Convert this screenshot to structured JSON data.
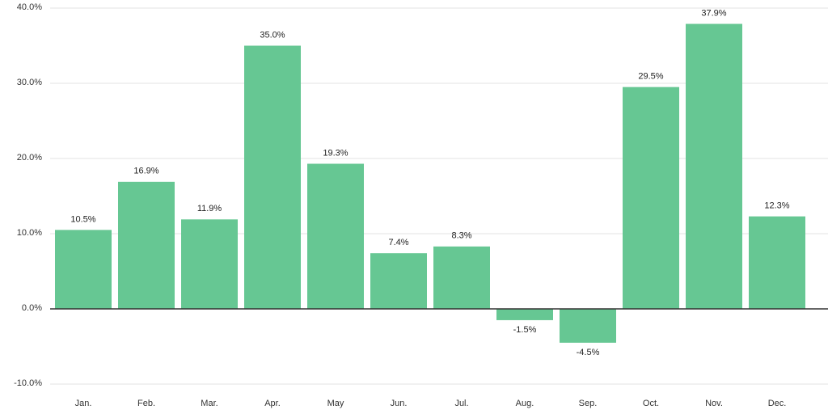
{
  "chart_data": {
    "type": "bar",
    "categories": [
      "Jan.",
      "Feb.",
      "Mar.",
      "Apr.",
      "May",
      "Jun.",
      "Jul.",
      "Aug.",
      "Sep.",
      "Oct.",
      "Nov.",
      "Dec."
    ],
    "values": [
      10.5,
      16.9,
      11.9,
      35.0,
      19.3,
      7.4,
      8.3,
      -1.5,
      -4.5,
      29.5,
      37.9,
      12.3
    ],
    "value_labels": [
      "10.5%",
      "16.9%",
      "11.9%",
      "35.0%",
      "19.3%",
      "7.4%",
      "8.3%",
      "-1.5%",
      "-4.5%",
      "29.5%",
      "37.9%",
      "12.3%"
    ],
    "color": "#66c793",
    "ylim": [
      -10,
      40
    ],
    "yticks": [
      {
        "value": -10,
        "label": "-10.0%"
      },
      {
        "value": 0,
        "label": "0.0%"
      },
      {
        "value": 10,
        "label": "10.0%"
      },
      {
        "value": 20,
        "label": "20.0%"
      },
      {
        "value": 30,
        "label": "30.0%"
      },
      {
        "value": 40,
        "label": "40.0%"
      }
    ],
    "grid": true
  }
}
